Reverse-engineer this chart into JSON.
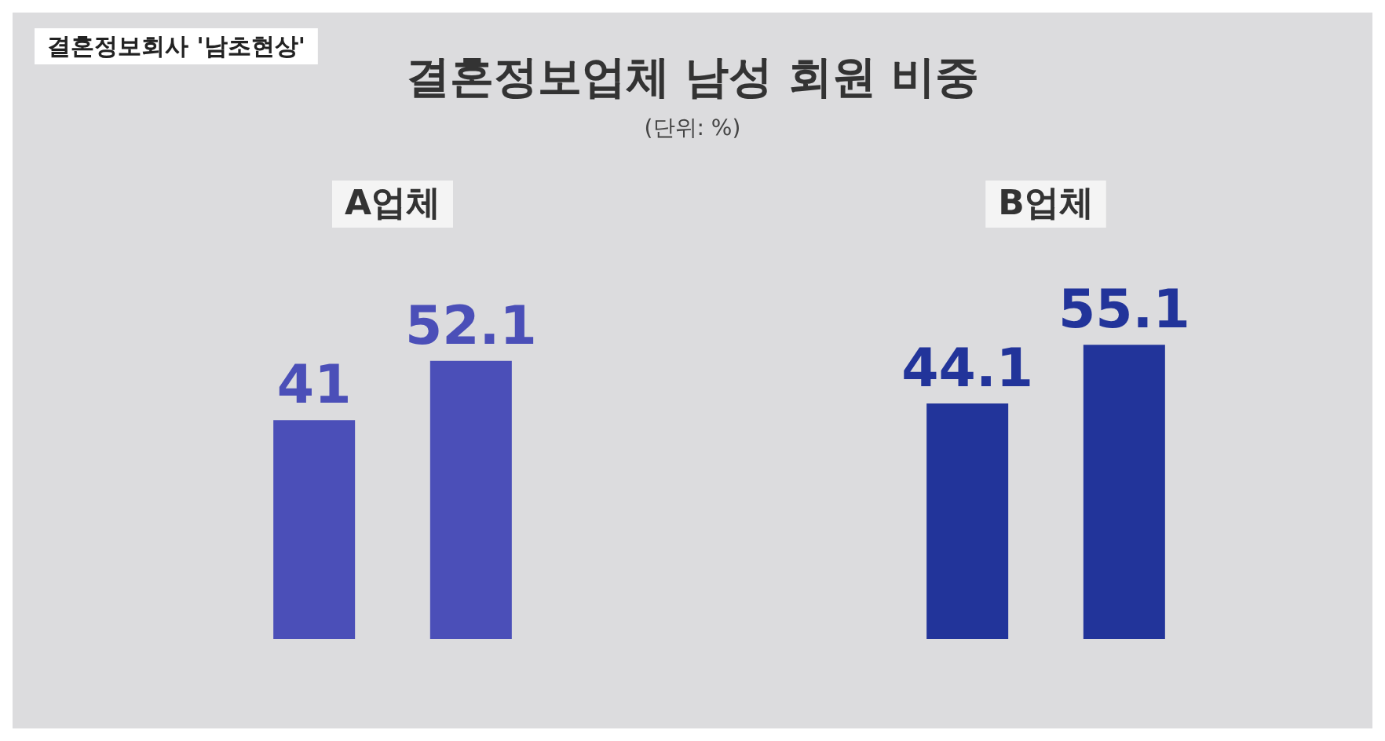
{
  "chart_data": {
    "type": "bar",
    "title": "결혼정보업체 남성 회원 비중",
    "subtitle": "(단위: %)",
    "annotations": [
      "결혼정보회사 '남초현상'"
    ],
    "categories": [
      "A업체",
      "B업체"
    ],
    "series": [
      {
        "colors": [
          "#4b4fb8",
          "#22349a"
        ],
        "values": [
          41,
          44.1
        ]
      },
      {
        "colors": [
          "#4b4fb8",
          "#22349a"
        ],
        "values": [
          52.1,
          55.1
        ]
      }
    ],
    "data_labels": true
  }
}
